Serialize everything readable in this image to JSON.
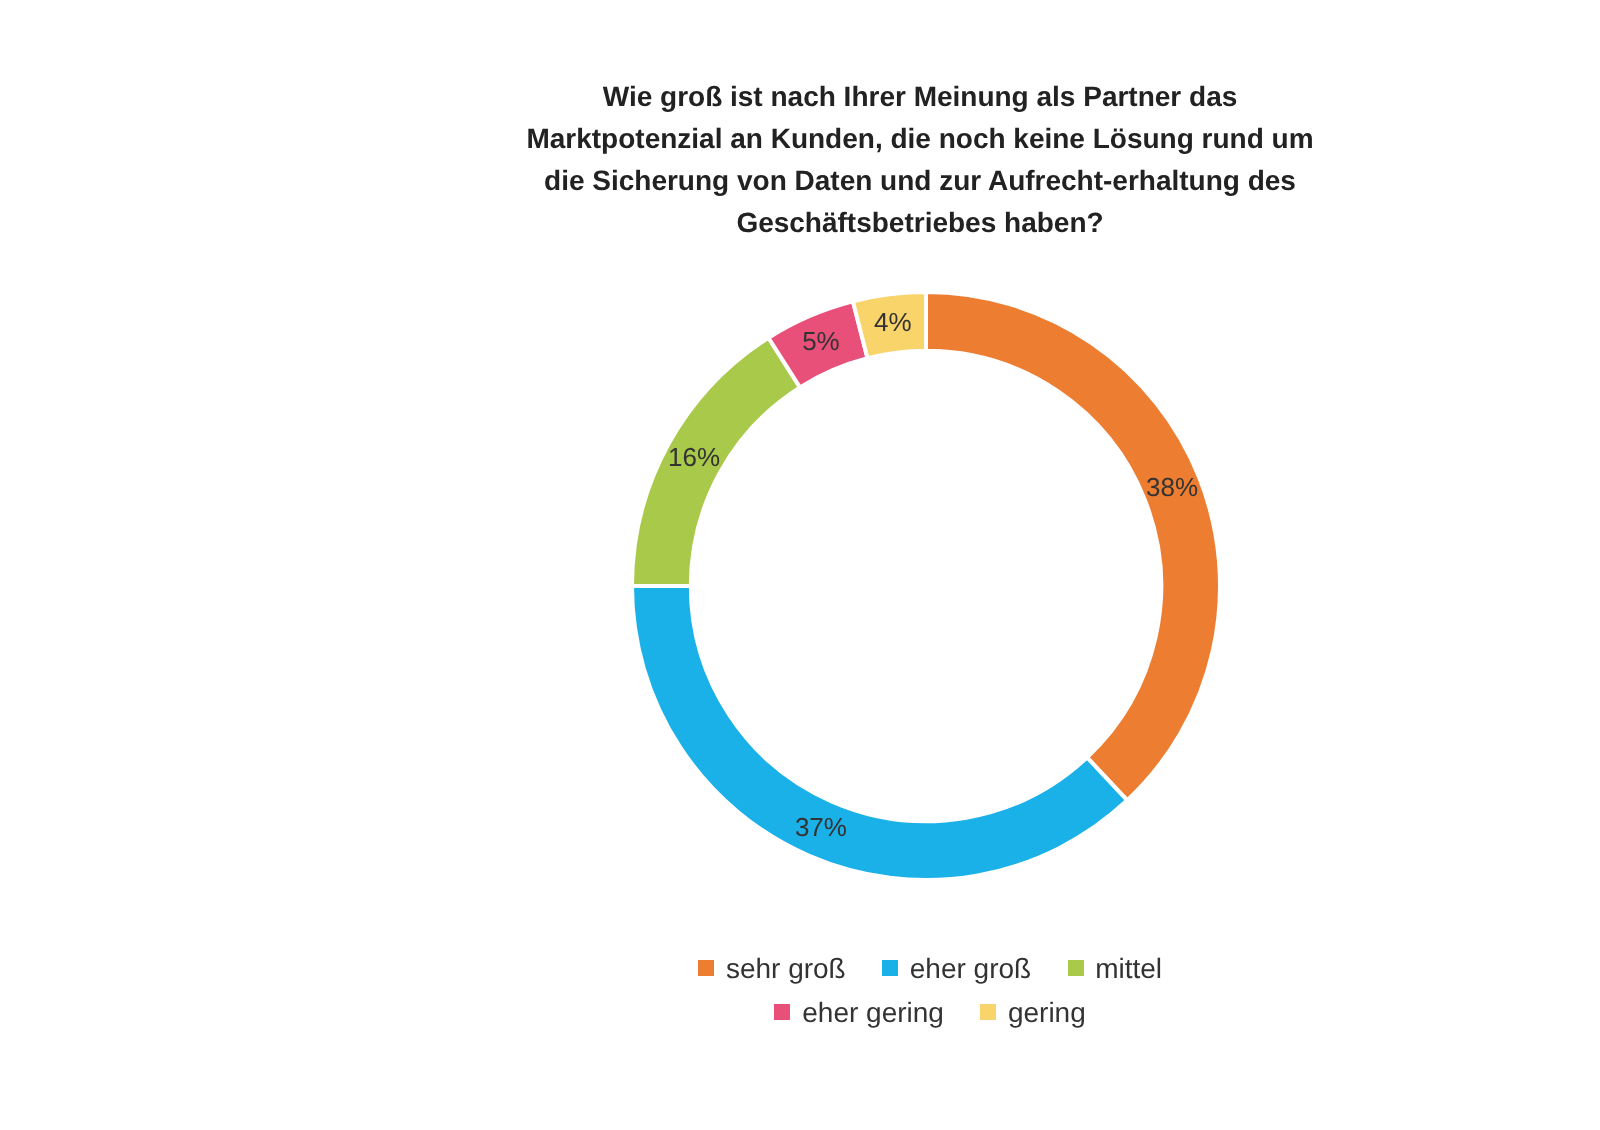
{
  "chart_data": {
    "type": "donut",
    "title": "Wie groß ist nach Ihrer Meinung als Partner das Marktpotenzial an Kunden, die noch keine Lösung rund um die Sicherung von Daten und zur Aufrecht-erhaltung des Geschäftsbetriebes haben?",
    "categories": [
      "sehr groß",
      "eher groß",
      "mittel",
      "eher gering",
      "gering"
    ],
    "values": [
      38,
      37,
      16,
      5,
      4
    ],
    "colors": [
      "#ed7d31",
      "#1ab0e8",
      "#a9c94a",
      "#e8507a",
      "#f9d46a"
    ],
    "value_labels": [
      "38%",
      "37%",
      "16%",
      "5%",
      "4%"
    ],
    "legend": "bottom"
  }
}
